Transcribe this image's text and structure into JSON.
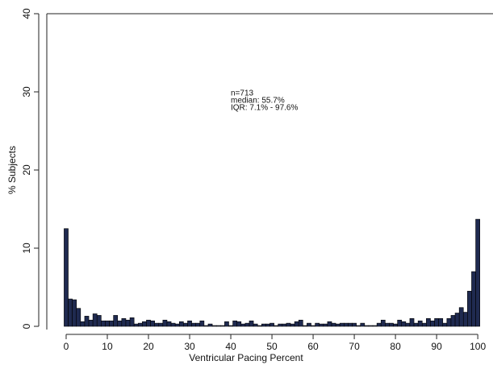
{
  "chart_data": {
    "type": "histogram",
    "x_label": "Ventricular Pacing Percent",
    "y_label": "% Subjects",
    "annotations": [
      "n=713",
      "median: 55.7%",
      "IQR: 7.1% - 97.6%"
    ],
    "color": "#1f2a50",
    "bins": [
      -0.5,
      0.5,
      1.5,
      2.5,
      3.5,
      4.5,
      5.5,
      6.5,
      7.5,
      8.5,
      9.5,
      10.5,
      11.5,
      12.5,
      13.5,
      14.5,
      15.5,
      16.5,
      17.5,
      18.5,
      19.5,
      20.5,
      21.5,
      22.5,
      23.5,
      24.5,
      25.5,
      26.5,
      27.5,
      28.5,
      29.5,
      30.5,
      31.5,
      32.5,
      33.5,
      34.5,
      35.5,
      36.5,
      37.5,
      38.5,
      39.5,
      40.5,
      41.5,
      42.5,
      43.5,
      44.5,
      45.5,
      46.5,
      47.5,
      48.5,
      49.5,
      50.5,
      51.5,
      52.5,
      53.5,
      54.5,
      55.5,
      56.5,
      57.5,
      58.5,
      59.5,
      60.5,
      61.5,
      62.5,
      63.5,
      64.5,
      65.5,
      66.5,
      67.5,
      68.5,
      69.5,
      70.5,
      71.5,
      72.5,
      73.5,
      74.5,
      75.5,
      76.5,
      77.5,
      78.5,
      79.5,
      80.5,
      81.5,
      82.5,
      83.5,
      84.5,
      85.5,
      86.5,
      87.5,
      88.5,
      89.5,
      90.5,
      91.5,
      92.5,
      93.5,
      94.5,
      95.5,
      96.5,
      97.5,
      98.5,
      99.5,
      100.5
    ],
    "values": [
      12.5,
      3.5,
      3.4,
      2.3,
      0.6,
      1.3,
      0.8,
      1.6,
      1.4,
      0.7,
      0.7,
      0.7,
      1.4,
      0.7,
      1.0,
      0.8,
      1.1,
      0.3,
      0.4,
      0.6,
      0.8,
      0.7,
      0.4,
      0.4,
      0.8,
      0.6,
      0.4,
      0.3,
      0.6,
      0.4,
      0.7,
      0.4,
      0.4,
      0.7,
      0.1,
      0.3,
      0.1,
      0.1,
      0.1,
      0.6,
      0.1,
      0.7,
      0.6,
      0.3,
      0.4,
      0.7,
      0.3,
      0.1,
      0.3,
      0.3,
      0.4,
      0.1,
      0.3,
      0.3,
      0.4,
      0.3,
      0.6,
      0.8,
      0.1,
      0.4,
      0.1,
      0.4,
      0.3,
      0.3,
      0.6,
      0.4,
      0.3,
      0.4,
      0.4,
      0.4,
      0.4,
      0.1,
      0.4,
      0.1,
      0.1,
      0.1,
      0.4,
      0.8,
      0.4,
      0.4,
      0.3,
      0.8,
      0.6,
      0.4,
      1.0,
      0.4,
      0.7,
      0.4,
      1.0,
      0.7,
      1.0,
      1.0,
      0.4,
      1.0,
      1.4,
      1.7,
      2.4,
      1.8,
      4.5,
      7.0,
      13.7
    ],
    "xlim": [
      -4.7,
      103.7
    ],
    "ylim": [
      0,
      40
    ],
    "xticks": [
      0,
      10,
      20,
      30,
      40,
      50,
      60,
      70,
      80,
      90,
      100
    ],
    "yticks": [
      0,
      10,
      20,
      30,
      40
    ]
  }
}
